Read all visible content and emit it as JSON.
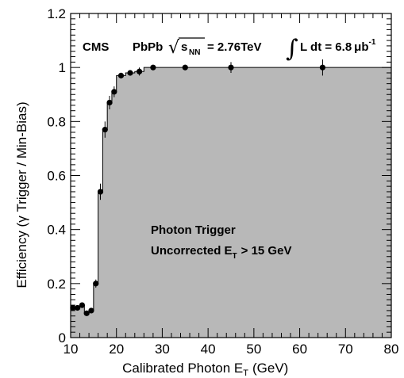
{
  "chart_data": {
    "type": "scatter",
    "xlabel": "Calibrated Photon E",
    "xlabel_sub": "T",
    "xlabel_unit": "(GeV)",
    "ylabel": "Efficiency (γ Trigger / Min-Bias)",
    "xlim": [
      10,
      80
    ],
    "ylim": [
      0,
      1.2
    ],
    "xticks": [
      10,
      20,
      30,
      40,
      50,
      60,
      70,
      80
    ],
    "yticks": [
      0,
      0.2,
      0.4,
      0.6,
      0.8,
      1,
      1.2
    ],
    "ytick_labels": [
      "0",
      "0.2",
      "0.4",
      "0.6",
      "0.8",
      "1",
      "1.2"
    ],
    "grid": false,
    "fill_color": "#b8b8b8",
    "series": [
      {
        "x": [
          10.5,
          11.5,
          12.5,
          13.5,
          14.5,
          15.5,
          16.5,
          17.5,
          18.5,
          19.5,
          21.0,
          23.0,
          25.0,
          28.0,
          35.0,
          45.0,
          65.0
        ],
        "y": [
          0.11,
          0.11,
          0.12,
          0.09,
          0.1,
          0.2,
          0.54,
          0.77,
          0.87,
          0.91,
          0.97,
          0.98,
          0.985,
          1.0,
          1.0,
          1.0,
          1.0
        ],
        "yerr": [
          0.01,
          0.01,
          0.01,
          0.01,
          0.01,
          0.015,
          0.03,
          0.03,
          0.025,
          0.02,
          0.01,
          0.01,
          0.015,
          0.01,
          0.01,
          0.02,
          0.03
        ],
        "bins": [
          [
            10,
            11
          ],
          [
            11,
            12
          ],
          [
            12,
            13
          ],
          [
            13,
            14
          ],
          [
            14,
            15
          ],
          [
            15,
            16
          ],
          [
            16,
            17
          ],
          [
            17,
            18
          ],
          [
            18,
            19
          ],
          [
            19,
            20
          ],
          [
            20,
            22
          ],
          [
            22,
            24
          ],
          [
            24,
            26
          ],
          [
            26,
            30
          ],
          [
            30,
            40
          ],
          [
            40,
            50
          ],
          [
            50,
            80
          ]
        ]
      }
    ],
    "annotations": {
      "experiment": "CMS",
      "system": "PbPb",
      "sqrt_symbol": "√",
      "sqrt_s": "s",
      "sqrt_sub": "NN",
      "energy": "= 2.76TeV",
      "integral": "∫",
      "lumi": "L dt = 6.8",
      "lumi_unit": "μb",
      "lumi_exp": "-1",
      "trigger_name": "Photon Trigger",
      "cut_prefix": "Uncorrected E",
      "cut_sub": "T",
      "cut_suffix": "> 15 GeV"
    }
  }
}
